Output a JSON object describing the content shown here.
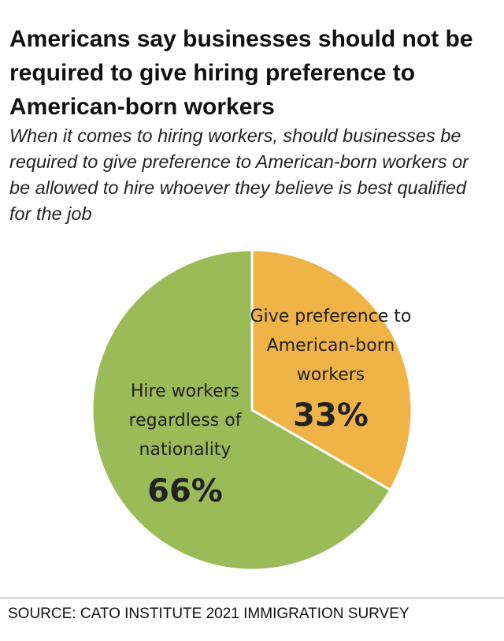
{
  "chart_data": {
    "type": "pie",
    "title": "Americans say businesses should not be required to give hiring preference to American-born workers",
    "subtitle": "When it comes to hiring workers, should businesses be required to give preference to American-born workers or be allowed to hire whoever they believe is best qualified for the job",
    "categories": [
      "Give preference to American-born workers",
      "Hire workers regardless of nationality"
    ],
    "values": [
      33,
      66
    ],
    "value_labels": [
      "33%",
      "66%"
    ],
    "colors": [
      "#efb348",
      "#9bbb59"
    ],
    "source": "SOURCE: CATO INSTITUTE 2021 IMMIGRATION SURVEY"
  }
}
